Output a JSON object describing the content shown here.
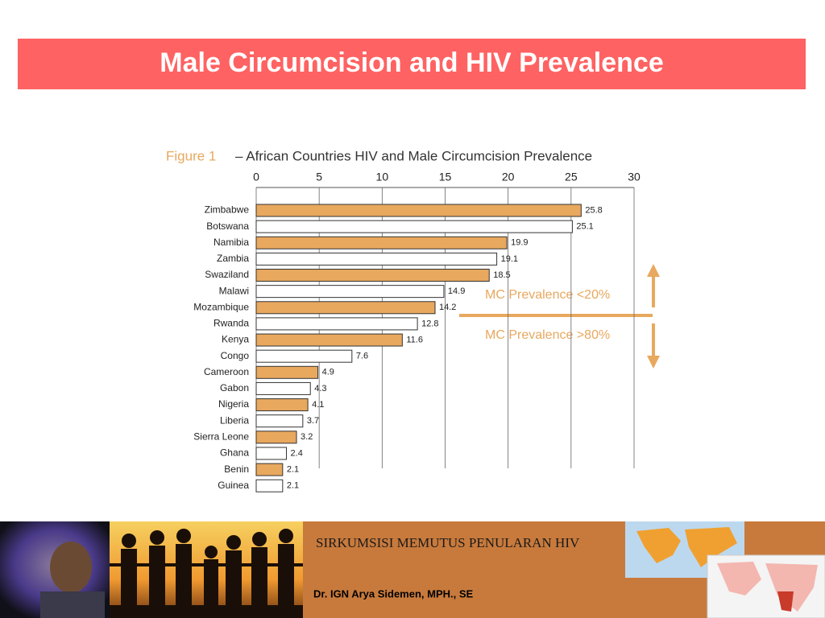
{
  "chart_data": {
    "type": "bar",
    "orientation": "horizontal",
    "title": "Male Circumcision and HIV Prevalence",
    "figure_label": "Figure 1",
    "subtitle": "– African Countries HIV and Male Circumcision Prevalence",
    "categories": [
      "Zimbabwe",
      "Botswana",
      "Namibia",
      "Zambia",
      "Swaziland",
      "Malawi",
      "Mozambique",
      "Rwanda",
      "Kenya",
      "Congo",
      "Cameroon",
      "Gabon",
      "Nigeria",
      "Liberia",
      "Sierra Leone",
      "Ghana",
      "Benin",
      "Guinea"
    ],
    "values": [
      25.8,
      25.1,
      19.9,
      19.1,
      18.5,
      14.9,
      14.2,
      12.8,
      11.6,
      7.6,
      4.9,
      4.3,
      4.1,
      3.7,
      3.2,
      2.4,
      2.1,
      2.1
    ],
    "colors": [
      "#e8a85e",
      "#ffffff"
    ],
    "xlim": [
      0,
      30
    ],
    "xticks": [
      0,
      5,
      10,
      15,
      20,
      25,
      30
    ],
    "grid": true,
    "annotations": [
      "MC Prevalence <20%",
      "MC Prevalence >80%"
    ],
    "footer": {
      "slogan": "SIRKUMSISI MEMUTUS PENULARAN HIV",
      "author": "Dr. IGN Arya Sidemen, MPH., SE"
    }
  }
}
